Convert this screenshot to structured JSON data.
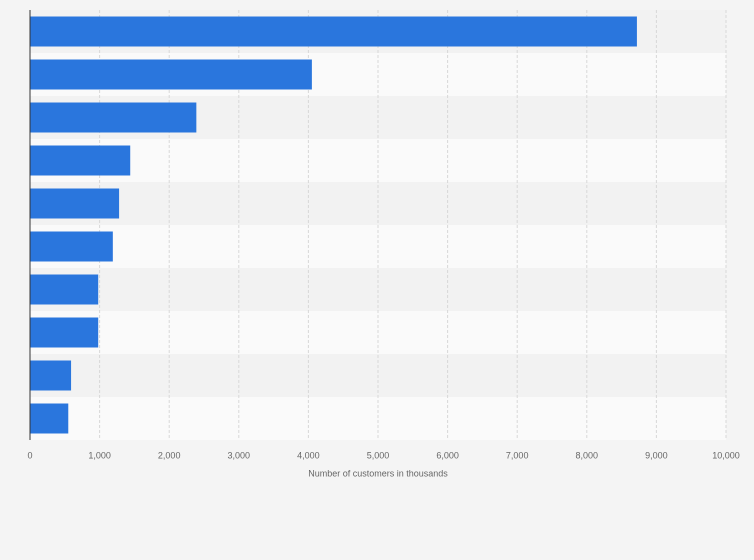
{
  "chart_data": {
    "type": "hbar",
    "xlabel": "Number of customers in thousands",
    "categories": [
      null,
      null,
      null,
      null,
      null,
      null,
      null,
      null,
      null,
      null
    ],
    "values": [
      8720,
      4050,
      2390,
      1440,
      1280,
      1190,
      980,
      980,
      590,
      550
    ],
    "color": "#2a76dd",
    "xlim": [
      0,
      10000
    ],
    "xticks": [
      0,
      {
        "value": 1000,
        "label": "1,000"
      },
      {
        "value": 2000,
        "label": "2,000"
      },
      {
        "value": 3000,
        "label": "3,000"
      },
      {
        "value": 4000,
        "label": "4,000"
      },
      {
        "value": 5000,
        "label": "5,000"
      },
      {
        "value": 6000,
        "label": "6,000"
      },
      {
        "value": 7000,
        "label": "7,000"
      },
      {
        "value": 8000,
        "label": "8,000"
      },
      {
        "value": 9000,
        "label": "9,000"
      },
      {
        "value": 10000,
        "label": "10,000"
      }
    ],
    "grid": true
  }
}
